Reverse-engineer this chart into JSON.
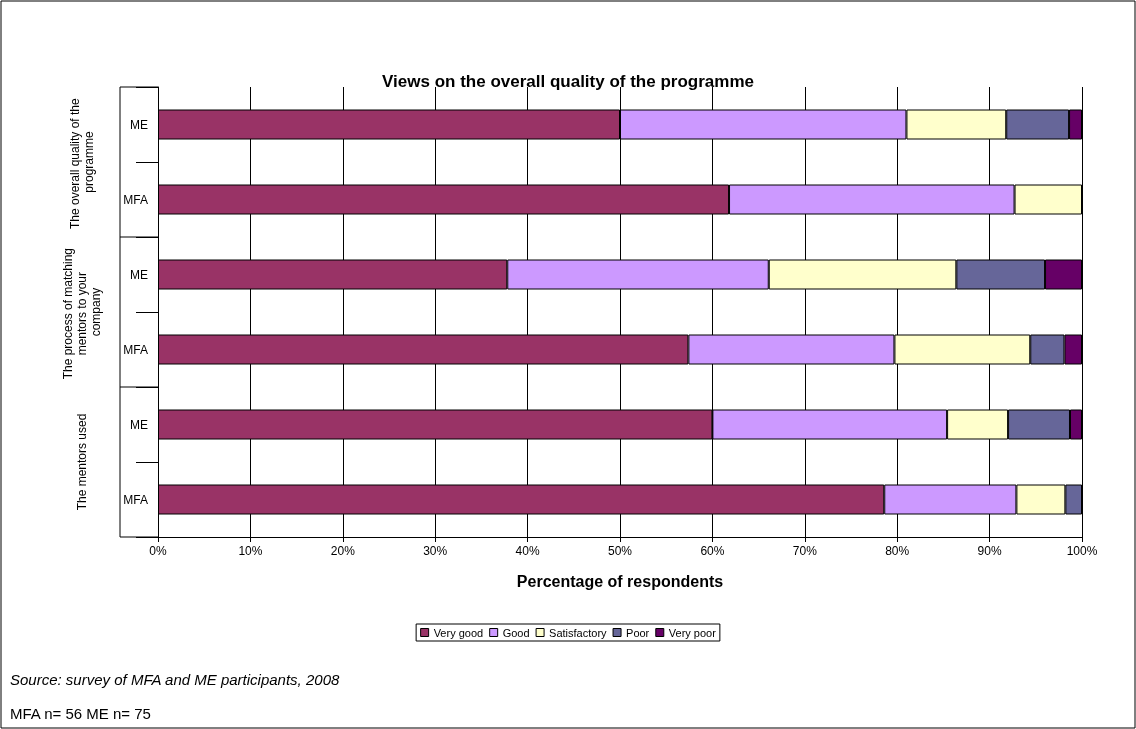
{
  "chart_data": {
    "type": "bar",
    "orientation": "horizontal",
    "stacked": true,
    "title": "Views on the overall quality of the programme",
    "xlabel": "Percentage of respondents",
    "categories": [
      "ME",
      "MFA",
      "ME",
      "MFA",
      "ME",
      "MFA"
    ],
    "series": [
      {
        "name": "Very good",
        "color": "#993366",
        "values": [
          50.0,
          61.8,
          37.8,
          57.4,
          60.0,
          78.6
        ]
      },
      {
        "name": "Good",
        "color": "#cc99ff",
        "values": [
          31.0,
          30.9,
          28.3,
          22.3,
          25.4,
          14.3
        ]
      },
      {
        "name": "Satisfactory",
        "color": "#ffffcc",
        "values": [
          10.8,
          7.3,
          20.3,
          14.7,
          6.6,
          5.3
        ]
      },
      {
        "name": "Poor",
        "color": "#666699",
        "values": [
          6.8,
          0,
          9.6,
          3.7,
          6.7,
          1.8
        ]
      },
      {
        "name": "Very poor",
        "color": "#660066",
        "values": [
          1.4,
          0,
          4.0,
          1.9,
          1.3,
          0
        ]
      }
    ],
    "xlim": [
      0,
      100
    ],
    "xticks": [
      {
        "value": 0,
        "label": "0%"
      },
      {
        "value": 10,
        "label": "10%"
      },
      {
        "value": 20,
        "label": "20%"
      },
      {
        "value": 30,
        "label": "30%"
      },
      {
        "value": 40,
        "label": "40%"
      },
      {
        "value": 50,
        "label": "50%"
      },
      {
        "value": 60,
        "label": "60%"
      },
      {
        "value": 70,
        "label": "70%"
      },
      {
        "value": 80,
        "label": "80%"
      },
      {
        "value": 90,
        "label": "90%"
      },
      {
        "value": 100,
        "label": "100%"
      }
    ],
    "grid": "x",
    "legend": "bottom",
    "annotations": [
      "The overall quality of the programme",
      "The process of matching mentors to your company",
      "The mentors used",
      "Source: survey of MFA and ME participants, 2008",
      "MFA n= 56 ME n= 75"
    ]
  }
}
